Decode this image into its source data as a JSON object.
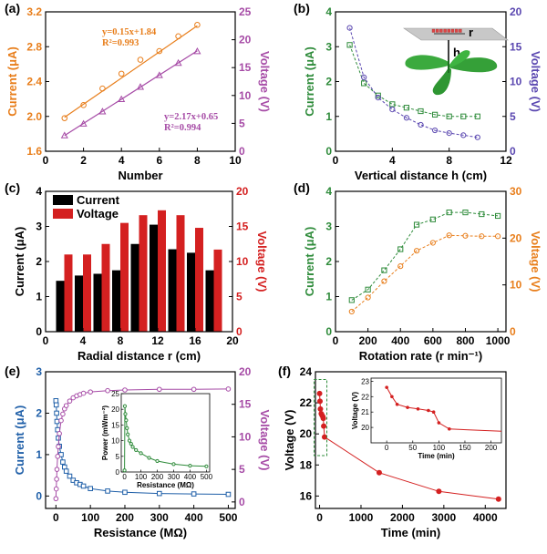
{
  "colors": {
    "orange": "#E87E1B",
    "purple": "#A64BA6",
    "green": "#2E8B3A",
    "indigo": "#5A47B0",
    "red": "#D42020",
    "blue": "#1F5FA8",
    "black": "#000000"
  },
  "chart_data": [
    {
      "id": "a",
      "panel_label": "(a)",
      "type": "scatter",
      "xlabel": "Number",
      "ylabel_left": "Current (μA)",
      "ylabel_right": "Voltage (V)",
      "xlim": [
        0,
        10
      ],
      "xticks": [
        0,
        2,
        4,
        6,
        8,
        10
      ],
      "ylim_left": [
        1.6,
        3.2
      ],
      "yticks_left": [
        "1.6",
        "2.0",
        "2.4",
        "2.8",
        "3.2"
      ],
      "ylim_right": [
        0,
        25
      ],
      "yticks_right": [
        0,
        5,
        10,
        15,
        20,
        25
      ],
      "series": [
        {
          "axis": "left",
          "marker": "circle",
          "color": "#E87E1B",
          "x": [
            1,
            2,
            3,
            4,
            5,
            6,
            7,
            8
          ],
          "y": [
            1.98,
            2.13,
            2.32,
            2.49,
            2.65,
            2.75,
            2.92,
            3.05
          ],
          "fit": {
            "slope": 0.15,
            "intercept": 1.84
          }
        },
        {
          "axis": "right",
          "marker": "triangle",
          "color": "#A64BA6",
          "x": [
            1,
            2,
            3,
            4,
            5,
            6,
            7,
            8
          ],
          "y": [
            2.8,
            4.9,
            7.1,
            9.3,
            11.5,
            13.6,
            15.8,
            17.9
          ],
          "fit": {
            "slope": 2.17,
            "intercept": 0.65
          }
        }
      ],
      "annotations": [
        "y=0.15x+1.84",
        "R²=0.993",
        "y=2.17x+0.65",
        "R²=0.994"
      ]
    },
    {
      "id": "b",
      "panel_label": "(b)",
      "type": "line",
      "xlabel": "Vertical distance h (cm)",
      "ylabel_left": "Current (μA)",
      "ylabel_right": "Voltage (V)",
      "xlim": [
        0,
        12
      ],
      "xticks": [
        0,
        4,
        8,
        12
      ],
      "ylim_left": [
        0,
        4
      ],
      "yticks_left": [
        0,
        1,
        2,
        3,
        4
      ],
      "ylim_right": [
        0,
        20
      ],
      "yticks_right": [
        0,
        5,
        10,
        15,
        20
      ],
      "series": [
        {
          "axis": "left",
          "marker": "square",
          "color": "#2E8B3A",
          "x": [
            1,
            2,
            3,
            4,
            5,
            6,
            7,
            8,
            9,
            10
          ],
          "y": [
            3.05,
            1.95,
            1.6,
            1.35,
            1.25,
            1.15,
            1.05,
            1.0,
            1.0,
            1.0
          ]
        },
        {
          "axis": "right",
          "marker": "circle",
          "color": "#5A47B0",
          "x": [
            1,
            2,
            3,
            4,
            5,
            6,
            7,
            8,
            9,
            10
          ],
          "y": [
            17.7,
            10.6,
            7.7,
            6.0,
            4.8,
            3.8,
            3.0,
            2.6,
            2.3,
            2.0
          ]
        }
      ],
      "inset_labels": {
        "r": "r",
        "h": "h"
      }
    },
    {
      "id": "c",
      "panel_label": "(c)",
      "type": "bar",
      "xlabel": "Radial distance r (cm)",
      "ylabel_left": "Current (μA)",
      "ylabel_right": "Voltage (V)",
      "xlim": [
        0,
        20
      ],
      "xticks": [
        0,
        4,
        8,
        12,
        16,
        20
      ],
      "ylim_left": [
        0,
        4
      ],
      "yticks_left": [
        0,
        1,
        2,
        3,
        4
      ],
      "ylim_right": [
        0,
        20
      ],
      "yticks_right": [
        0,
        5,
        10,
        15,
        20
      ],
      "x": [
        2,
        4,
        6,
        8,
        10,
        12,
        14,
        16,
        18
      ],
      "series": [
        {
          "name": "Current",
          "axis": "left",
          "color": "#000000",
          "values": [
            1.45,
            1.6,
            1.65,
            1.75,
            2.5,
            3.05,
            2.35,
            2.25,
            1.75
          ]
        },
        {
          "name": "Voltage",
          "axis": "right",
          "color": "#D42020",
          "values": [
            11.0,
            11.0,
            12.5,
            15.5,
            16.6,
            17.3,
            16.6,
            14.8,
            11.7
          ]
        }
      ],
      "legend": "top-left"
    },
    {
      "id": "d",
      "panel_label": "(d)",
      "type": "line",
      "xlabel": "Rotation rate (r min⁻¹)",
      "ylabel_left": "Current (μA)",
      "ylabel_right": "Voltage (V)",
      "xlim": [
        0,
        1050
      ],
      "xticks": [
        0,
        200,
        400,
        600,
        800,
        1000
      ],
      "ylim_left": [
        0,
        4
      ],
      "yticks_left": [
        0,
        1,
        2,
        3,
        4
      ],
      "ylim_right": [
        0,
        30
      ],
      "yticks_right": [
        0,
        10,
        20,
        30
      ],
      "series": [
        {
          "axis": "left",
          "marker": "square",
          "color": "#2E8B3A",
          "x": [
            100,
            200,
            300,
            400,
            500,
            600,
            700,
            800,
            900,
            1000
          ],
          "y": [
            0.9,
            1.2,
            1.75,
            2.35,
            3.05,
            3.2,
            3.4,
            3.4,
            3.35,
            3.3
          ]
        },
        {
          "axis": "right",
          "marker": "circle",
          "color": "#E87E1B",
          "x": [
            100,
            200,
            300,
            400,
            500,
            600,
            700,
            800,
            900,
            1000
          ],
          "y": [
            4.3,
            7.3,
            10.8,
            14.0,
            17.3,
            19.0,
            20.6,
            20.5,
            20.4,
            20.4
          ]
        }
      ]
    },
    {
      "id": "e",
      "panel_label": "(e)",
      "type": "line",
      "xlabel": "Resistance (MΩ)",
      "ylabel_left": "Current (μA)",
      "ylabel_right": "Voltage (V)",
      "xlim": [
        -30,
        520
      ],
      "xticks": [
        0,
        100,
        200,
        300,
        400,
        500
      ],
      "ylim_left": [
        -0.3,
        3
      ],
      "yticks_left": [
        0,
        1,
        2,
        3
      ],
      "ylim_right": [
        -1,
        20
      ],
      "yticks_right": [
        0,
        5,
        10,
        15,
        20
      ],
      "series": [
        {
          "axis": "left",
          "marker": "square",
          "color": "#1F5FA8",
          "x": [
            0,
            1,
            2,
            3,
            5,
            7,
            10,
            15,
            20,
            25,
            30,
            40,
            50,
            60,
            70,
            80,
            100,
            150,
            200,
            300,
            400,
            500
          ],
          "y": [
            2.3,
            2.2,
            2.0,
            1.8,
            1.6,
            1.4,
            1.2,
            1.0,
            0.82,
            0.7,
            0.6,
            0.48,
            0.38,
            0.32,
            0.28,
            0.24,
            0.18,
            0.12,
            0.09,
            0.06,
            0.05,
            0.04
          ]
        },
        {
          "axis": "right",
          "marker": "circle",
          "color": "#A64BA6",
          "x": [
            0,
            1,
            2,
            3,
            5,
            7,
            10,
            15,
            20,
            25,
            30,
            40,
            50,
            60,
            70,
            80,
            100,
            150,
            200,
            300,
            400,
            500
          ],
          "y": [
            0.5,
            2.0,
            3.5,
            5.0,
            7.0,
            8.5,
            10.5,
            12.5,
            13.5,
            14.3,
            14.8,
            15.5,
            16.0,
            16.3,
            16.5,
            16.7,
            16.9,
            17.1,
            17.2,
            17.3,
            17.3,
            17.35
          ]
        }
      ],
      "inset": {
        "type": "line",
        "xlabel": "Resistance (MΩ)",
        "ylabel": "Power (mWm⁻²)",
        "xlim": [
          -20,
          520
        ],
        "xticks": [
          0,
          100,
          200,
          300,
          400,
          500
        ],
        "ylim": [
          0,
          25
        ],
        "yticks": [
          0,
          5,
          10,
          15,
          20,
          25
        ],
        "color": "#2E8B3A",
        "x": [
          0,
          2,
          5,
          10,
          15,
          20,
          30,
          40,
          50,
          70,
          100,
          150,
          200,
          300,
          400,
          500
        ],
        "y": [
          0.5,
          21.0,
          18.5,
          16.5,
          14.0,
          12.0,
          10.0,
          9.0,
          8.0,
          7.0,
          6.0,
          4.5,
          3.5,
          2.5,
          2.0,
          1.8
        ]
      }
    },
    {
      "id": "f",
      "panel_label": "(f)",
      "type": "line",
      "xlabel": "Time (min)",
      "ylabel": "Voltage (V)",
      "xlim": [
        -100,
        4500
      ],
      "xticks": [
        0,
        1000,
        2000,
        3000,
        4000
      ],
      "ylim": [
        15.2,
        24
      ],
      "yticks": [
        16,
        18,
        20,
        22,
        24
      ],
      "color": "#D42020",
      "x": [
        0,
        10,
        20,
        40,
        60,
        80,
        90,
        100,
        120,
        1440,
        2880,
        4320
      ],
      "y": [
        22.6,
        22.1,
        21.6,
        21.3,
        21.2,
        21.1,
        21.0,
        20.5,
        19.8,
        17.5,
        16.3,
        15.8
      ],
      "inset": {
        "xlabel": "Time (min)",
        "ylabel": "Voltage (V)",
        "xlim": [
          -30,
          220
        ],
        "xticks": [
          0,
          50,
          100,
          150,
          200
        ],
        "ylim": [
          19,
          23.2
        ],
        "yticks": [
          20,
          21,
          22,
          23
        ],
        "x": [
          0,
          10,
          20,
          40,
          60,
          80,
          90,
          100,
          120,
          220
        ],
        "y": [
          22.6,
          22.0,
          21.5,
          21.3,
          21.2,
          21.1,
          21.0,
          20.3,
          19.9,
          19.75
        ]
      }
    }
  ]
}
